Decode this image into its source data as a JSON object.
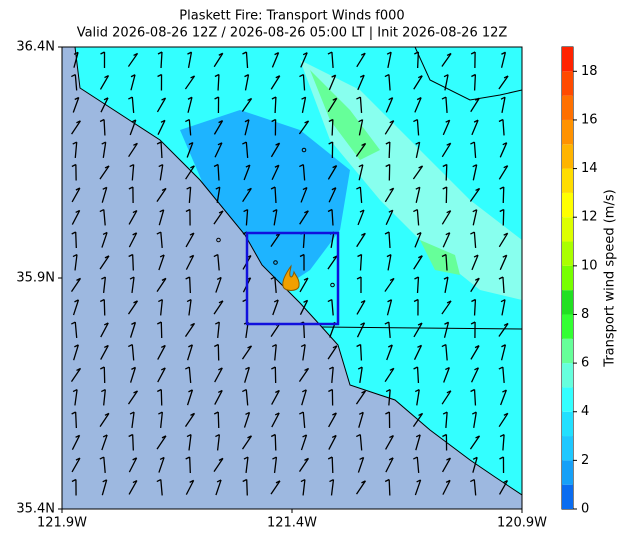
{
  "title": "Plaskett Fire: Transport Winds f000",
  "subtitle": "Valid 2026-08-26 12Z / 2026-08-26 05:00 LT | Init 2026-08-26 12Z",
  "map": {
    "xlim": [
      -121.9,
      -120.9
    ],
    "ylim": [
      35.4,
      36.4
    ],
    "xticks": [
      {
        "value": -121.9,
        "label": "121.9W"
      },
      {
        "value": -121.4,
        "label": "121.4W"
      },
      {
        "value": -120.9,
        "label": "120.9W"
      }
    ],
    "yticks": [
      {
        "value": 35.4,
        "label": "35.4N"
      },
      {
        "value": 35.9,
        "label": "35.9N"
      },
      {
        "value": 36.4,
        "label": "36.4N"
      }
    ]
  },
  "colorbar": {
    "label": "Transport wind speed (m/s)",
    "lim": [
      0,
      19
    ],
    "ticks": [
      0,
      2,
      4,
      6,
      8,
      10,
      12,
      14,
      16,
      18
    ],
    "levels": [
      0,
      1,
      2,
      3,
      4,
      5,
      6,
      7,
      8,
      9,
      10,
      11,
      12,
      13,
      14,
      15,
      16,
      17,
      18,
      19
    ],
    "colors": [
      "#0a6cf0",
      "#16a0f8",
      "#1ec8ff",
      "#22e0ff",
      "#33ffff",
      "#66ffdd",
      "#66ff99",
      "#33ff33",
      "#22e022",
      "#77ff00",
      "#aaff00",
      "#ddff00",
      "#ffff00",
      "#ffdd00",
      "#ffb400",
      "#ff9200",
      "#ff7000",
      "#ff4a00",
      "#ff2200"
    ]
  }
}
